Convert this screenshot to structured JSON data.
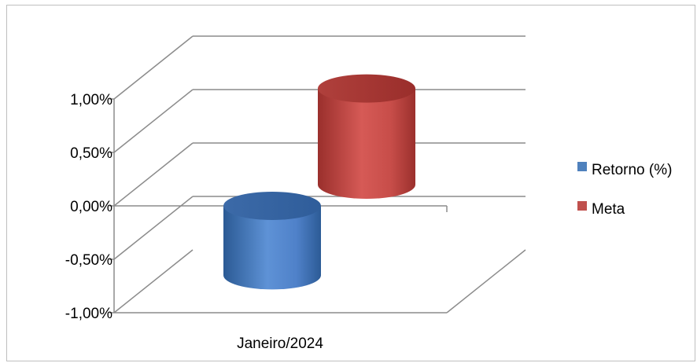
{
  "chart_data": {
    "type": "bar",
    "style": "3d-cylinder",
    "categories": [
      "Janeiro/2024"
    ],
    "series": [
      {
        "name": "Retorno (%)",
        "values": [
          -0.65
        ],
        "color": "#4f81bd"
      },
      {
        "name": "Meta",
        "values": [
          0.9
        ],
        "color": "#c0504d"
      }
    ],
    "ylim": [
      -1.0,
      1.0
    ],
    "yticks": [
      1.0,
      0.5,
      0.0,
      -0.5,
      -1.0
    ],
    "ytick_labels": [
      "1,00%",
      "0,50%",
      "0,00%",
      "-0,50%",
      "-1,00%"
    ],
    "grid": true,
    "legend_position": "right",
    "title": "",
    "xlabel": "",
    "ylabel": ""
  }
}
